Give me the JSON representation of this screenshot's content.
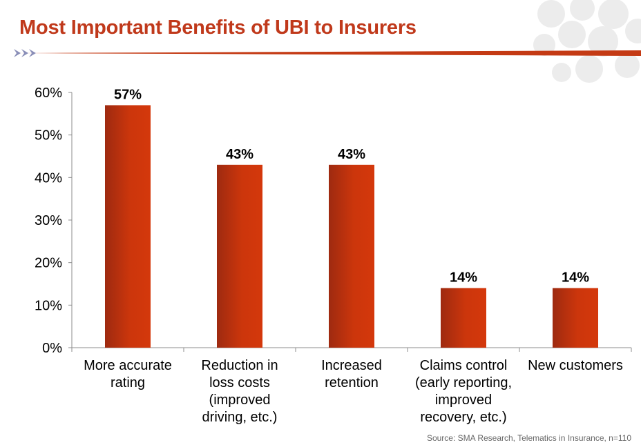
{
  "header": {
    "title": "Most Important Benefits of UBI to Insurers"
  },
  "footer": {
    "source": "Source: SMA Research, Telematics in Insurance, n=110"
  },
  "colors": {
    "title": "#c0391b",
    "bar_light": "#d4380c",
    "bar_dark": "#9e2a10",
    "accent_bar": "#c43a14"
  },
  "chart_data": {
    "type": "bar",
    "categories": [
      [
        "More accurate",
        "rating"
      ],
      [
        "Reduction in",
        "loss costs",
        "(improved",
        "driving, etc.)"
      ],
      [
        "Increased",
        "retention"
      ],
      [
        "Claims control",
        "(early reporting,",
        "improved",
        "recovery, etc.)"
      ],
      [
        "New customers"
      ]
    ],
    "values": [
      57,
      43,
      43,
      14,
      14
    ],
    "data_labels": [
      "57%",
      "43%",
      "43%",
      "14%",
      "14%"
    ],
    "y_ticks": [
      0,
      10,
      20,
      30,
      40,
      50,
      60
    ],
    "y_tick_labels": [
      "0%",
      "10%",
      "20%",
      "30%",
      "40%",
      "50%",
      "60%"
    ],
    "ylim": [
      0,
      60
    ],
    "grid": false,
    "legend": "none"
  }
}
